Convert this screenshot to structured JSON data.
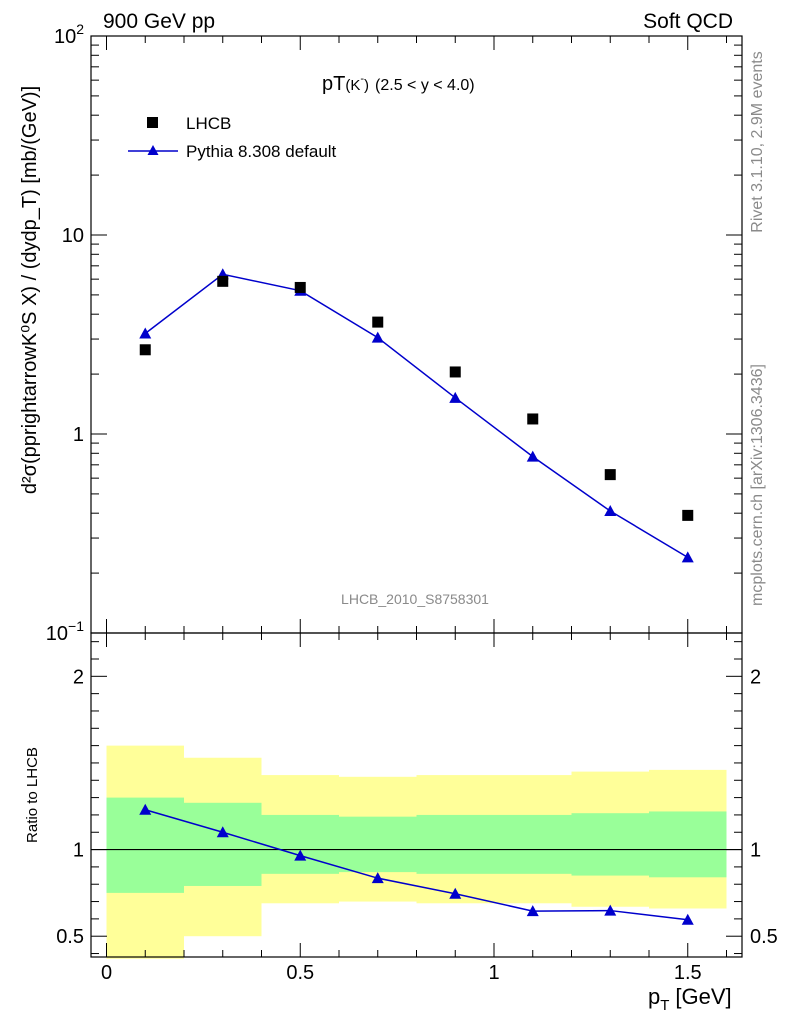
{
  "header": {
    "left": "900 GeV pp",
    "right": "Soft QCD"
  },
  "side": {
    "top": "Rivet 3.1.10,  2.9M events",
    "bottom": "mcplots.cern.ch [arXiv:1306.3436]"
  },
  "chart_data": [
    {
      "type": "scatter",
      "title_main": "pT",
      "title_sub": "(K",
      "title_sup": "-",
      "title_close": ")",
      "title_range": "(2.5 < y < 4.0)",
      "ylabel": "d²σ(pprightarrowK⁰S X) / (dydp_T) [mb/(GeV)]",
      "ylog": true,
      "ylim": [
        0.1,
        100
      ],
      "xlim": [
        -0.04,
        1.64
      ],
      "yticks": [
        {
          "v": 0.1,
          "label": "10",
          "sup": "−1"
        },
        {
          "v": 1,
          "label": "1",
          "sup": ""
        },
        {
          "v": 10,
          "label": "10",
          "sup": ""
        },
        {
          "v": 100,
          "label": "10",
          "sup": "2"
        }
      ],
      "watermark": "LHCB_2010_S8758301",
      "legend": {
        "position": "top-left",
        "data_label": "LHCB",
        "mc_label": "Pythia 8.308 default"
      },
      "x": [
        0.1,
        0.3,
        0.5,
        0.7,
        0.9,
        1.1,
        1.3,
        1.5
      ],
      "series": [
        {
          "name": "LHCB",
          "marker": "square",
          "color": "#000000",
          "values": [
            2.65,
            5.85,
            5.45,
            3.65,
            2.05,
            1.19,
            0.625,
            0.39
          ]
        },
        {
          "name": "Pythia 8.308 default",
          "marker": "triangle",
          "color": "#0000cc",
          "values": [
            3.2,
            6.35,
            5.25,
            3.05,
            1.52,
            0.77,
            0.41,
            0.24
          ]
        }
      ]
    },
    {
      "type": "line",
      "ylabel": "Ratio to LHCB",
      "xlabel": "p_T [GeV]",
      "xlabel_main": "p",
      "xlabel_sub": "T",
      "xlabel_unit": "[GeV]",
      "ylim": [
        0.38,
        2.25
      ],
      "xlim": [
        -0.04,
        1.64
      ],
      "yticks": [
        {
          "v": 0.5,
          "label": "0.5"
        },
        {
          "v": 1,
          "label": "1"
        },
        {
          "v": 2,
          "label": "2"
        }
      ],
      "xticks": [
        {
          "v": 0,
          "label": "0"
        },
        {
          "v": 0.5,
          "label": "0.5"
        },
        {
          "v": 1,
          "label": "1"
        },
        {
          "v": 1.5,
          "label": "1.5"
        }
      ],
      "bands": [
        {
          "x0": 0.0,
          "x1": 0.2,
          "y_lo": 0.37,
          "y_hi": 1.6,
          "g_lo": 0.75,
          "g_hi": 1.3
        },
        {
          "x0": 0.2,
          "x1": 0.4,
          "y_lo": 0.5,
          "y_hi": 1.53,
          "g_lo": 0.79,
          "g_hi": 1.27
        },
        {
          "x0": 0.4,
          "x1": 0.6,
          "y_lo": 0.69,
          "y_hi": 1.43,
          "g_lo": 0.86,
          "g_hi": 1.2
        },
        {
          "x0": 0.6,
          "x1": 0.8,
          "y_lo": 0.7,
          "y_hi": 1.42,
          "g_lo": 0.87,
          "g_hi": 1.19
        },
        {
          "x0": 0.8,
          "x1": 1.0,
          "y_lo": 0.69,
          "y_hi": 1.43,
          "g_lo": 0.86,
          "g_hi": 1.2
        },
        {
          "x0": 1.0,
          "x1": 1.2,
          "y_lo": 0.69,
          "y_hi": 1.43,
          "g_lo": 0.86,
          "g_hi": 1.2
        },
        {
          "x0": 1.2,
          "x1": 1.4,
          "y_lo": 0.67,
          "y_hi": 1.45,
          "g_lo": 0.85,
          "g_hi": 1.21
        },
        {
          "x0": 1.4,
          "x1": 1.6,
          "y_lo": 0.66,
          "y_hi": 1.46,
          "g_lo": 0.84,
          "g_hi": 1.22
        }
      ],
      "x": [
        0.1,
        0.3,
        0.5,
        0.7,
        0.9,
        1.1,
        1.3,
        1.5
      ],
      "series": [
        {
          "name": "Pythia 8.308 default",
          "color": "#0000cc",
          "values": [
            1.23,
            1.1,
            0.965,
            0.835,
            0.745,
            0.645,
            0.648,
            0.595
          ]
        }
      ],
      "reference_line": 1
    }
  ]
}
